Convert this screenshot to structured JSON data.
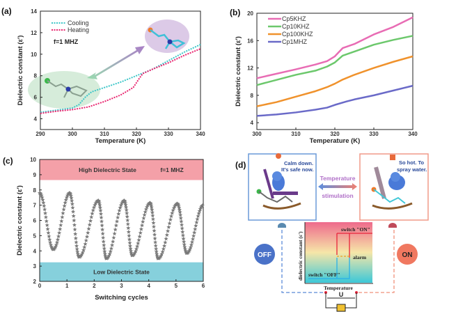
{
  "panel_labels": {
    "a": "(a)",
    "b": "(b)",
    "c": "(c)",
    "d": "(d)"
  },
  "chart_data": [
    {
      "id": "a",
      "type": "line",
      "xlabel": "Temperature (K)",
      "ylabel": "Dielectric constant (ε')",
      "xlim": [
        290,
        340
      ],
      "ylim": [
        3,
        14
      ],
      "xticks": [
        290,
        300,
        310,
        320,
        330,
        340
      ],
      "yticks": [
        4,
        6,
        8,
        10,
        12,
        14
      ],
      "annotation": "f=1 MHZ",
      "legend_position": "top-left",
      "series": [
        {
          "name": "Cooling",
          "color": "#3cc6c8",
          "style": "dotted",
          "x": [
            290,
            295,
            300,
            302,
            304,
            306,
            310,
            315,
            320,
            325,
            330,
            335,
            340
          ],
          "y": [
            4.6,
            4.8,
            5.0,
            5.3,
            6.0,
            6.5,
            6.9,
            7.4,
            8.0,
            8.6,
            9.4,
            10.2,
            10.9
          ]
        },
        {
          "name": "Heating",
          "color": "#e8246e",
          "style": "dotted",
          "x": [
            290,
            295,
            300,
            305,
            310,
            315,
            319,
            321,
            322,
            325,
            330,
            335,
            340
          ],
          "y": [
            4.5,
            4.7,
            4.85,
            5.1,
            5.6,
            6.2,
            6.9,
            7.8,
            8.2,
            8.6,
            9.2,
            9.9,
            10.5
          ]
        }
      ]
    },
    {
      "id": "b",
      "type": "line",
      "xlabel": "Temperature (K)",
      "ylabel": "Dielectric constant (ε')",
      "xlim": [
        300,
        340
      ],
      "ylim": [
        3,
        20
      ],
      "xticks": [
        300,
        310,
        320,
        330,
        340
      ],
      "yticks": [
        4,
        8,
        12,
        16,
        20
      ],
      "legend_position": "top-left",
      "series": [
        {
          "name": "Cp5KHZ",
          "color": "#e86cb4",
          "x": [
            300,
            310,
            315,
            318,
            320,
            322,
            325,
            330,
            335,
            340
          ],
          "y": [
            10.5,
            11.8,
            12.5,
            13.0,
            13.7,
            14.9,
            15.5,
            16.9,
            18.0,
            19.4
          ]
        },
        {
          "name": "Cp10KHZ",
          "color": "#6cc86c",
          "x": [
            300,
            310,
            315,
            318,
            320,
            322,
            325,
            330,
            335,
            340
          ],
          "y": [
            9.5,
            11.0,
            11.6,
            12.2,
            12.8,
            13.8,
            14.4,
            15.4,
            16.1,
            16.7
          ]
        },
        {
          "name": "Cp100KHZ",
          "color": "#f0922c",
          "x": [
            300,
            305,
            310,
            315,
            318,
            320,
            322,
            325,
            330,
            335,
            340
          ],
          "y": [
            6.4,
            7.0,
            7.8,
            8.6,
            9.2,
            9.7,
            10.3,
            11.0,
            12.0,
            12.9,
            13.7
          ]
        },
        {
          "name": "Cp1MHZ",
          "color": "#6a6ac8",
          "x": [
            300,
            305,
            310,
            315,
            318,
            320,
            323,
            325,
            330,
            335,
            340
          ],
          "y": [
            5.0,
            5.2,
            5.5,
            5.9,
            6.2,
            6.6,
            7.1,
            7.4,
            8.0,
            8.7,
            9.4
          ]
        }
      ]
    },
    {
      "id": "c",
      "type": "scatter",
      "xlabel": "Switching cycles",
      "ylabel": "Dielectric constant (ε')",
      "xlim": [
        0,
        6
      ],
      "ylim": [
        2,
        10
      ],
      "xticks": [
        0,
        1,
        2,
        3,
        4,
        5,
        6
      ],
      "yticks": [
        2,
        3,
        4,
        5,
        6,
        7,
        8,
        9,
        10
      ],
      "annotation": "f=1 MHZ",
      "marker": "star",
      "marker_color": "#7a7a7a",
      "bands": [
        {
          "label": "High Dielectric State",
          "range": [
            8.65,
            10
          ],
          "color": "#f4a0a8"
        },
        {
          "label": "Low Dielectric State",
          "range": [
            2,
            3.25
          ],
          "color": "#86d0dc"
        }
      ],
      "series": [
        {
          "x": [
            0,
            0.5,
            1.1,
            1.45,
            2.15,
            2.45,
            3.1,
            3.4,
            4.05,
            4.35,
            5.05,
            5.4,
            6.0
          ],
          "y": [
            7.8,
            4.1,
            7.8,
            3.6,
            7.3,
            3.5,
            7.3,
            3.7,
            7.15,
            3.5,
            7.1,
            3.85,
            7.0
          ]
        }
      ]
    }
  ],
  "diagram_d": {
    "left_speech": [
      "Calm down.",
      "It's safe now."
    ],
    "right_speech": [
      "So hot. To",
      "spray water."
    ],
    "arrow_label_top": "Temperature",
    "arrow_label_bottom": "stimulation",
    "off_label": "OFF",
    "on_label": "ON",
    "inset_ylabel": "dielectric constant (ε')",
    "inset_xlabel": "Temperature",
    "switch_on": "switch \"ON\"",
    "switch_off": "switch \"OFF\"",
    "alarm": "alarm",
    "voltage": "U"
  }
}
